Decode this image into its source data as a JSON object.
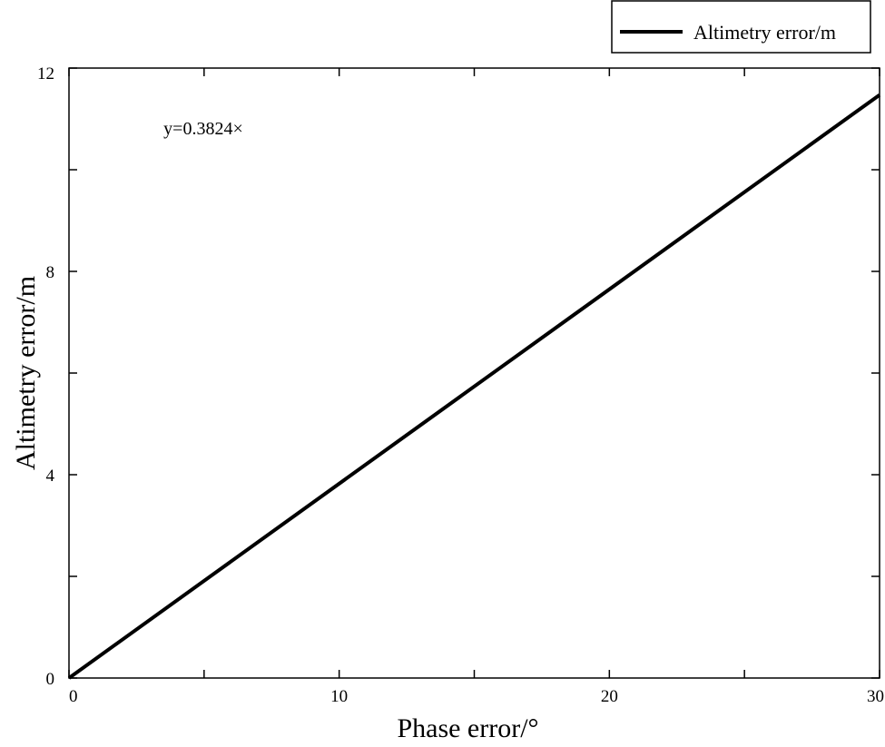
{
  "chart_data": {
    "type": "line",
    "xlabel": "Phase error/°",
    "ylabel": "Altimetry error/m",
    "xlim": [
      0,
      30
    ],
    "ylim": [
      0,
      12
    ],
    "x_ticks": [
      0,
      10,
      20,
      30
    ],
    "x_minor_ticks": [
      5,
      15,
      25
    ],
    "y_ticks": [
      0,
      4,
      8,
      12
    ],
    "y_minor_ticks": [
      2,
      6,
      10
    ],
    "grid": false,
    "legend_position": "top-right-outside",
    "series": [
      {
        "name": "Altimetry error/m",
        "color": "#000000",
        "x": [
          0,
          30
        ],
        "y": [
          0,
          11.472
        ]
      }
    ],
    "annotations": [
      {
        "text": "y=0.3824×",
        "x": 3.5,
        "y": 10.7
      }
    ]
  }
}
